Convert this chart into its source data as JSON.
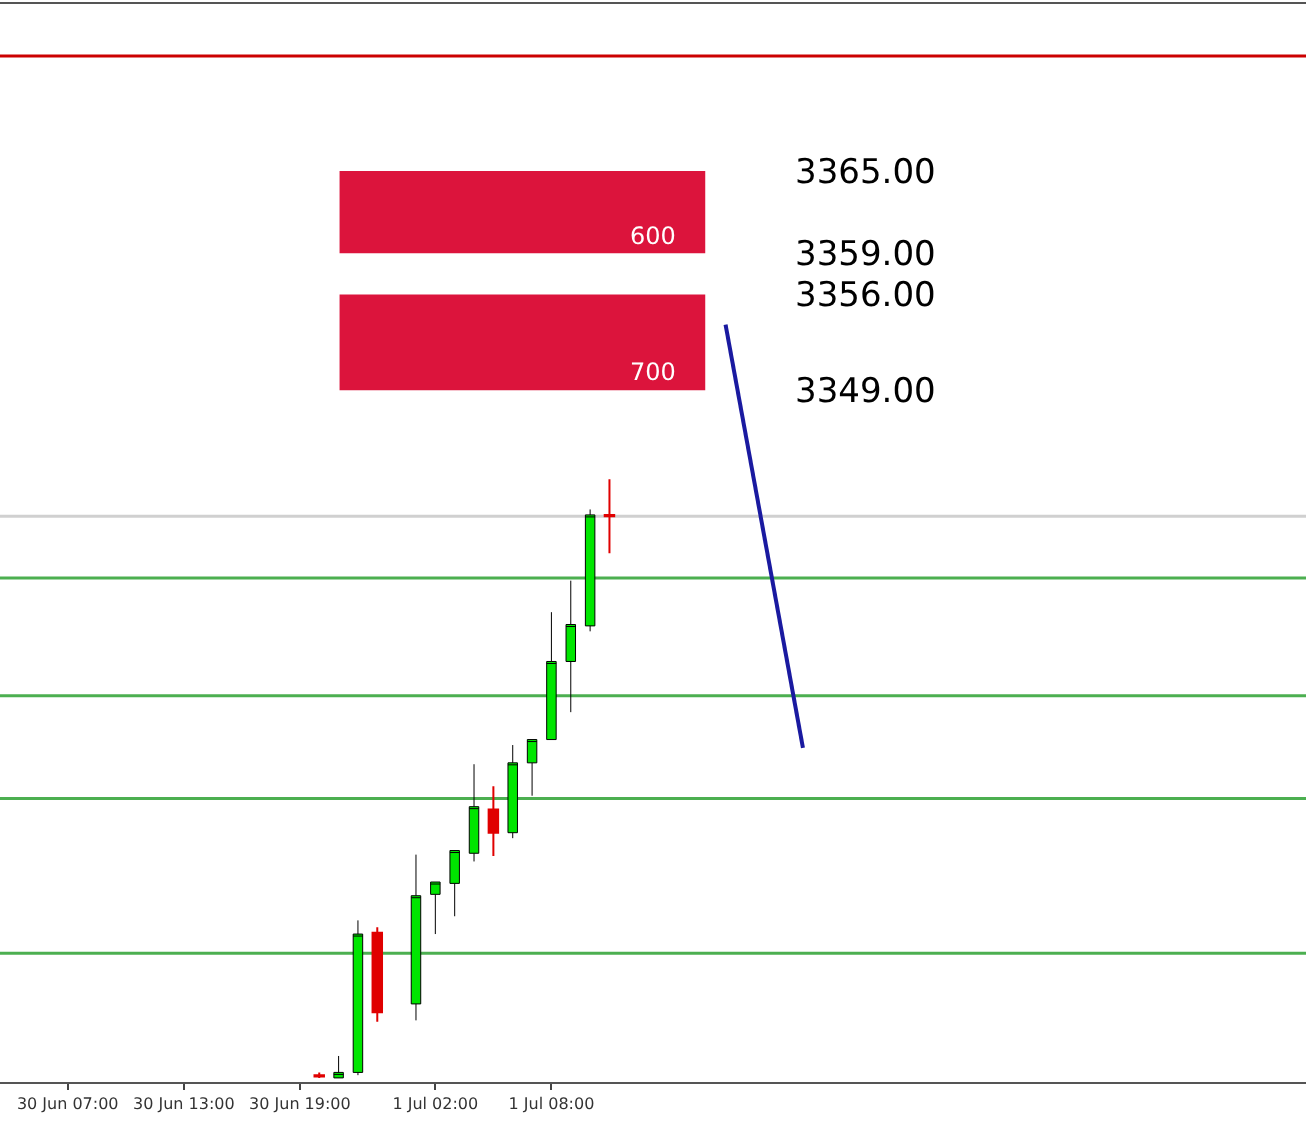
{
  "chart_data": {
    "type": "candlestick",
    "x": [
      "--06-30T20:00",
      "--06-30T21:00",
      "--06-30T22:00",
      "--06-30T23:00",
      "--07-01T01:00",
      "--07-01T02:00",
      "--07-01T03:00",
      "--07-01T04:00",
      "--07-01T05:00",
      "--07-01T06:00",
      "--07-01T07:00",
      "--07-01T08:00",
      "--07-01T09:00",
      "--07-01T10:00",
      "--07-01T11:00"
    ],
    "ohlc": [
      [
        3299.0,
        3299.2,
        3298.8,
        3298.9
      ],
      [
        3298.8,
        3300.4,
        3298.8,
        3299.2
      ],
      [
        3299.2,
        3310.3,
        3299.0,
        3309.3
      ],
      [
        3309.4,
        3309.8,
        3302.9,
        3303.6
      ],
      [
        3304.2,
        3315.1,
        3303.0,
        3312.1
      ],
      [
        3312.2,
        3313.1,
        3309.3,
        3313.1
      ],
      [
        3313.0,
        3315.4,
        3310.6,
        3315.4
      ],
      [
        3315.2,
        3321.7,
        3314.6,
        3318.6
      ],
      [
        3318.4,
        3320.1,
        3315.0,
        3316.7
      ],
      [
        3316.7,
        3323.1,
        3316.3,
        3321.8
      ],
      [
        3321.8,
        3323.5,
        3319.4,
        3323.5
      ],
      [
        3323.5,
        3332.8,
        3323.5,
        3329.2
      ],
      [
        3329.2,
        3335.1,
        3325.5,
        3331.9
      ],
      [
        3331.8,
        3340.3,
        3331.4,
        3339.9
      ],
      [
        3339.9,
        3342.5,
        3337.1,
        3339.8
      ]
    ],
    "colors": [
      "#e00000",
      "#00e600",
      "#00e600",
      "#e00000",
      "#00e600",
      "#00e600",
      "#00e600",
      "#00e600",
      "#e00000",
      "#00e600",
      "#00e600",
      "#00e600",
      "#00e600",
      "#00e600",
      "#e00000"
    ],
    "series": [
      {
        "type": "line",
        "x": [
          "--07-01T17:00",
          "--07-01T21:00"
        ],
        "values": [
          3353.8,
          3322.9
        ],
        "color": "#1a1aa0"
      }
    ],
    "xlim": [
      "--06-30T03:30",
      "--07-02T23:00"
    ],
    "xticks": [
      {
        "value": "--06-30T07:00",
        "label": "30 Jun 07:00"
      },
      {
        "value": "--06-30T13:00",
        "label": "30 Jun 13:00"
      },
      {
        "value": "--06-30T19:00",
        "label": "30 Jun 19:00"
      },
      {
        "value": "--07-01T02:00",
        "label": "1 Jul 02:00"
      },
      {
        "value": "--07-01T08:00",
        "label": "1 Jul 08:00"
      }
    ],
    "ylim": [
      3298.5,
      3377.2
    ],
    "yticks": [
      {
        "value": 3365,
        "label": "3365.00"
      },
      {
        "value": 3359,
        "label": "3359.00"
      },
      {
        "value": 3356,
        "label": "3356.00"
      },
      {
        "value": 3349,
        "label": "3349.00"
      }
    ],
    "bands": [
      {
        "axis": "y",
        "from": 3359,
        "to": 3365,
        "label": "600",
        "color": "#dc143c"
      },
      {
        "axis": "y",
        "from": 3349,
        "to": 3356,
        "label": "700",
        "color": "#dc143c"
      }
    ],
    "ref_lines": [
      {
        "axis": "y",
        "value": 3373.4,
        "color": "#cc0000"
      },
      {
        "axis": "y",
        "value": 3339.8,
        "color": "#d0d0d0"
      },
      {
        "axis": "y",
        "value": 3335.3,
        "color": "#4caf50"
      },
      {
        "axis": "y",
        "value": 3326.7,
        "color": "#4caf50"
      },
      {
        "axis": "y",
        "value": 3319.2,
        "color": "#4caf50"
      },
      {
        "axis": "y",
        "value": 3307.9,
        "color": "#4caf50"
      }
    ],
    "grid": false
  }
}
